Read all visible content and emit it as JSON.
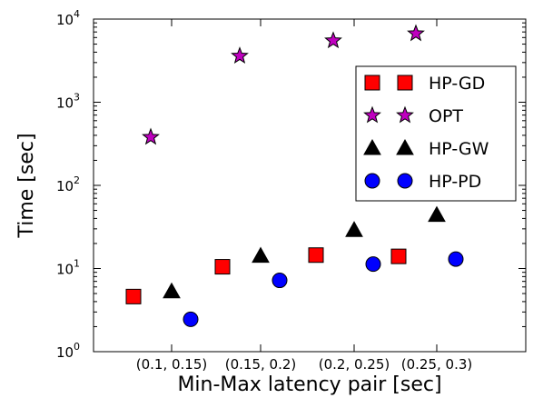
{
  "chart_data": {
    "type": "scatter",
    "title": "",
    "xlabel": "Min-Max latency pair [sec]",
    "ylabel": "Time [sec]",
    "y_scale": "log",
    "ylim": [
      1,
      10000
    ],
    "y_tick_labels": [
      {
        "base": "10",
        "exp": "0"
      },
      {
        "base": "10",
        "exp": "1"
      },
      {
        "base": "10",
        "exp": "2"
      },
      {
        "base": "10",
        "exp": "3"
      },
      {
        "base": "10",
        "exp": "4"
      }
    ],
    "categories": [
      "(0.1, 0.15)",
      "(0.15, 0.2)",
      "(0.2, 0.25)",
      "(0.25, 0.3)"
    ],
    "grid": false,
    "legend_position": "upper-right",
    "series": [
      {
        "name": "HP-GD",
        "marker": "square",
        "color": "#ff0000",
        "values": [
          4.6,
          10.5,
          14.5,
          14.0
        ]
      },
      {
        "name": "OPT",
        "marker": "star",
        "color": "#bf00bf",
        "values": [
          380,
          3600,
          5500,
          6700
        ]
      },
      {
        "name": "HP-GW",
        "marker": "triangle",
        "color": "#000000",
        "values": [
          5.3,
          14.2,
          29,
          44
        ]
      },
      {
        "name": "HP-PD",
        "marker": "circle",
        "color": "#0000ff",
        "values": [
          2.45,
          7.2,
          11.3,
          13.0
        ]
      }
    ]
  }
}
